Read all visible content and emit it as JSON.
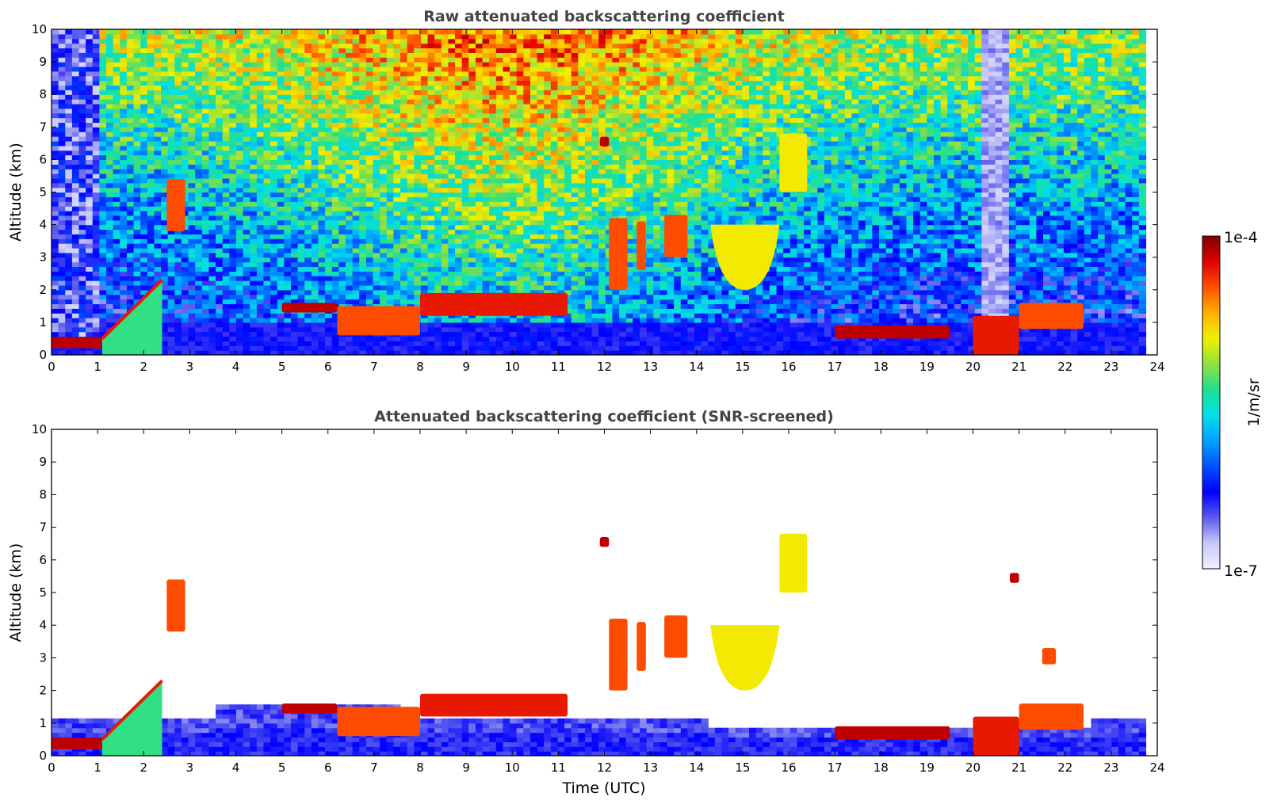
{
  "chart_data": [
    {
      "type": "heatmap",
      "title": "Raw attenuated backscattering coefficient",
      "xlabel": "",
      "ylabel": "Altitude (km)",
      "xlim": [
        0,
        24
      ],
      "ylim": [
        0,
        10
      ],
      "x_ticks": [
        "0",
        "1",
        "2",
        "3",
        "4",
        "5",
        "6",
        "7",
        "8",
        "9",
        "10",
        "11",
        "12",
        "13",
        "14",
        "15",
        "16",
        "17",
        "18",
        "19",
        "20",
        "21",
        "22",
        "23",
        "24"
      ],
      "y_ticks": [
        "0",
        "1",
        "2",
        "3",
        "4",
        "5",
        "6",
        "7",
        "8",
        "9",
        "10"
      ],
      "grid": false,
      "data_end_x": 23.75,
      "features": [
        {
          "x0": 0.0,
          "x1": 1.1,
          "y0": 0.2,
          "y1": 0.55,
          "level": 0.95
        },
        {
          "x0": 1.1,
          "x1": 2.4,
          "y0": 0.5,
          "y1": 2.3,
          "level": 0.9,
          "shape": "rising-layer"
        },
        {
          "x0": 2.5,
          "x1": 2.9,
          "y0": 3.8,
          "y1": 5.4,
          "level": 0.85
        },
        {
          "x0": 5.0,
          "x1": 6.2,
          "y0": 1.3,
          "y1": 1.6,
          "level": 0.95
        },
        {
          "x0": 6.2,
          "x1": 8.0,
          "y0": 0.6,
          "y1": 1.5,
          "level": 0.85
        },
        {
          "x0": 8.0,
          "x1": 11.2,
          "y0": 1.2,
          "y1": 1.9,
          "level": 0.9
        },
        {
          "x0": 11.9,
          "x1": 12.1,
          "y0": 6.4,
          "y1": 6.7,
          "level": 0.95
        },
        {
          "x0": 12.1,
          "x1": 12.5,
          "y0": 2.0,
          "y1": 4.2,
          "level": 0.85
        },
        {
          "x0": 12.7,
          "x1": 12.9,
          "y0": 2.6,
          "y1": 4.1,
          "level": 0.85
        },
        {
          "x0": 13.3,
          "x1": 13.8,
          "y0": 3.0,
          "y1": 4.3,
          "level": 0.85
        },
        {
          "x0": 14.3,
          "x1": 15.8,
          "y0": 2.0,
          "y1": 4.0,
          "level": 0.7,
          "shape": "cloud"
        },
        {
          "x0": 15.8,
          "x1": 16.4,
          "y0": 5.0,
          "y1": 6.8,
          "level": 0.7
        },
        {
          "x0": 17.0,
          "x1": 19.5,
          "y0": 0.5,
          "y1": 0.9,
          "level": 0.95
        },
        {
          "x0": 20.0,
          "x1": 21.0,
          "y0": 0.0,
          "y1": 1.2,
          "level": 0.9
        },
        {
          "x0": 21.0,
          "x1": 22.4,
          "y0": 0.8,
          "y1": 1.6,
          "level": 0.85
        }
      ]
    },
    {
      "type": "heatmap",
      "title": "Attenuated backscattering coefficient (SNR-screened)",
      "xlabel": "Time (UTC)",
      "ylabel": "Altitude (km)",
      "xlim": [
        0,
        24
      ],
      "ylim": [
        0,
        10
      ],
      "x_ticks": [
        "0",
        "1",
        "2",
        "3",
        "4",
        "5",
        "6",
        "7",
        "8",
        "9",
        "10",
        "11",
        "12",
        "13",
        "14",
        "15",
        "16",
        "17",
        "18",
        "19",
        "20",
        "21",
        "22",
        "23",
        "24"
      ],
      "y_ticks": [
        "0",
        "1",
        "2",
        "3",
        "4",
        "5",
        "6",
        "7",
        "8",
        "9",
        "10"
      ],
      "grid": false,
      "data_end_x": 23.75,
      "features": [
        {
          "x0": 0.0,
          "x1": 1.1,
          "y0": 0.2,
          "y1": 0.55,
          "level": 0.95
        },
        {
          "x0": 1.1,
          "x1": 2.4,
          "y0": 0.5,
          "y1": 2.3,
          "level": 0.9,
          "shape": "rising-layer"
        },
        {
          "x0": 2.5,
          "x1": 2.9,
          "y0": 3.8,
          "y1": 5.4,
          "level": 0.85
        },
        {
          "x0": 5.0,
          "x1": 6.2,
          "y0": 1.3,
          "y1": 1.6,
          "level": 0.95
        },
        {
          "x0": 6.2,
          "x1": 8.0,
          "y0": 0.6,
          "y1": 1.5,
          "level": 0.85
        },
        {
          "x0": 8.0,
          "x1": 11.2,
          "y0": 1.2,
          "y1": 1.9,
          "level": 0.9
        },
        {
          "x0": 11.9,
          "x1": 12.1,
          "y0": 6.4,
          "y1": 6.7,
          "level": 0.95
        },
        {
          "x0": 12.1,
          "x1": 12.5,
          "y0": 2.0,
          "y1": 4.2,
          "level": 0.85
        },
        {
          "x0": 12.7,
          "x1": 12.9,
          "y0": 2.6,
          "y1": 4.1,
          "level": 0.85
        },
        {
          "x0": 13.3,
          "x1": 13.8,
          "y0": 3.0,
          "y1": 4.3,
          "level": 0.85
        },
        {
          "x0": 14.3,
          "x1": 15.8,
          "y0": 2.0,
          "y1": 4.0,
          "level": 0.7,
          "shape": "cloud"
        },
        {
          "x0": 15.8,
          "x1": 16.4,
          "y0": 5.0,
          "y1": 6.8,
          "level": 0.7
        },
        {
          "x0": 17.0,
          "x1": 19.5,
          "y0": 0.5,
          "y1": 0.9,
          "level": 0.95
        },
        {
          "x0": 20.0,
          "x1": 21.0,
          "y0": 0.0,
          "y1": 1.2,
          "level": 0.9
        },
        {
          "x0": 21.0,
          "x1": 22.4,
          "y0": 0.8,
          "y1": 1.6,
          "level": 0.85
        },
        {
          "x0": 20.8,
          "x1": 21.0,
          "y0": 5.3,
          "y1": 5.6,
          "level": 0.95
        },
        {
          "x0": 21.5,
          "x1": 21.8,
          "y0": 2.8,
          "y1": 3.3,
          "level": 0.85
        }
      ]
    }
  ],
  "colorbar": {
    "label": "1/m/sr",
    "max_label": "1e-4",
    "min_label": "1e-7",
    "scale": "log",
    "colormap": [
      "#f0f0ff",
      "#c8c8f8",
      "#5a5af0",
      "#0000ff",
      "#0050ff",
      "#00a0ff",
      "#00e0e8",
      "#20e090",
      "#90e040",
      "#f0f000",
      "#ffb000",
      "#ff5000",
      "#e00000",
      "#800000"
    ]
  }
}
